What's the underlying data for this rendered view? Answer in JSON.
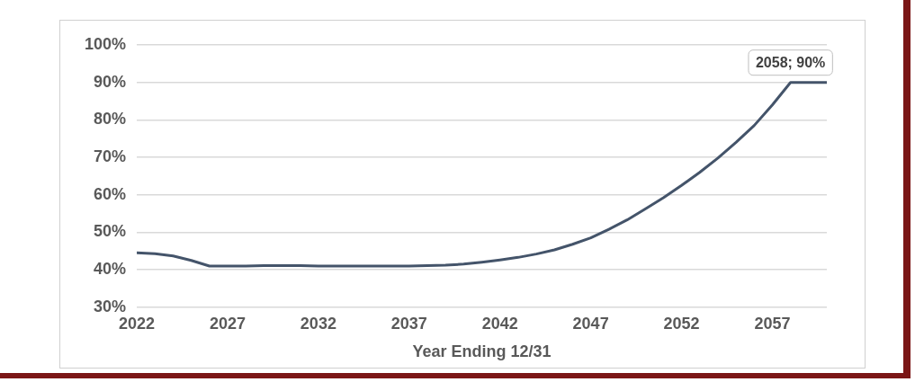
{
  "chart_data": {
    "type": "line",
    "xlabel": "Year Ending 12/31",
    "x": [
      2022,
      2023,
      2024,
      2025,
      2026,
      2027,
      2028,
      2029,
      2030,
      2031,
      2032,
      2033,
      2034,
      2035,
      2036,
      2037,
      2038,
      2039,
      2040,
      2041,
      2042,
      2043,
      2044,
      2045,
      2046,
      2047,
      2048,
      2049,
      2050,
      2051,
      2052,
      2053,
      2054,
      2055,
      2056,
      2057,
      2058,
      2059,
      2060
    ],
    "series": [
      {
        "color": "#44546a",
        "values": [
          44.5,
          44.3,
          43.7,
          42.5,
          41,
          41,
          41,
          41.1,
          41.1,
          41.1,
          41,
          41,
          41,
          41,
          41,
          41,
          41.1,
          41.2,
          41.5,
          42,
          42.6,
          43.3,
          44.2,
          45.3,
          46.8,
          48.5,
          50.8,
          53.3,
          56.2,
          59.2,
          62.5,
          66,
          69.8,
          74,
          78.5,
          84,
          90,
          90,
          90
        ]
      }
    ],
    "xlim": [
      2022,
      2060
    ],
    "xticks": [
      2022,
      2027,
      2032,
      2037,
      2042,
      2047,
      2052,
      2057
    ],
    "ylim": [
      30,
      100
    ],
    "yticks": [
      {
        "value": 30,
        "label": "30%"
      },
      {
        "value": 40,
        "label": "40%"
      },
      {
        "value": 50,
        "label": "50%"
      },
      {
        "value": 60,
        "label": "60%"
      },
      {
        "value": 70,
        "label": "70%"
      },
      {
        "value": 80,
        "label": "80%"
      },
      {
        "value": 90,
        "label": "90%"
      },
      {
        "value": 100,
        "label": "100%"
      }
    ],
    "grid": "y",
    "marker": "none",
    "line_style": "solid",
    "annotations": [
      {
        "text": "2058; 90%",
        "x": 2058,
        "y": 90
      }
    ]
  }
}
